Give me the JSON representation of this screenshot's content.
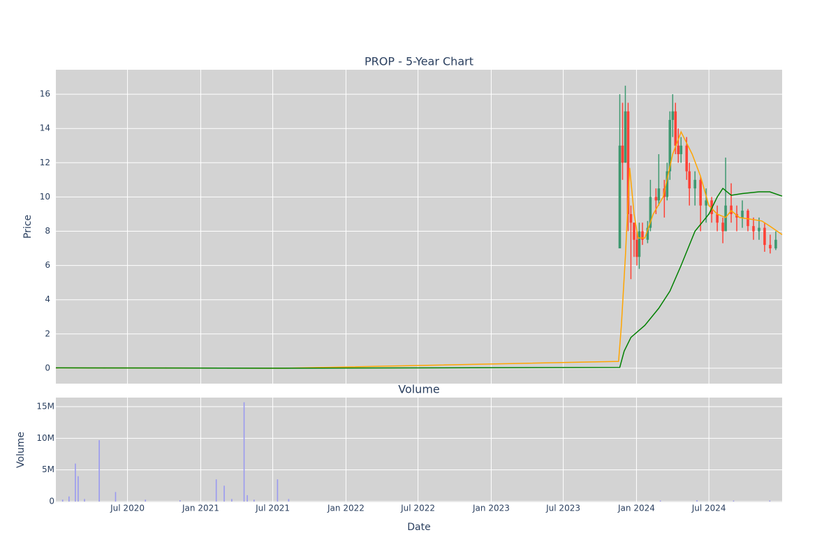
{
  "chart_data": [
    {
      "type": "candlestick",
      "title": "PROP - 5-Year Chart",
      "y_label": "Price",
      "xlim": [
        "2020-01-03",
        "2025-01-01"
      ],
      "ylim": [
        -0.9,
        17.43
      ],
      "yticks": [
        0,
        2,
        4,
        6,
        8,
        10,
        12,
        14,
        16
      ],
      "grid": true,
      "increasing_color": "#3d9970",
      "decreasing_color": "#ff4136",
      "candles": {
        "x": [
          "2020-01-06",
          "2020-05-04",
          "2020-10-05",
          "2021-03-01",
          "2021-07-05",
          "2023-11-20",
          "2023-11-27",
          "2023-12-04",
          "2023-12-11",
          "2023-12-18",
          "2023-12-26",
          "2024-01-02",
          "2024-01-08",
          "2024-01-16",
          "2024-01-29",
          "2024-02-05",
          "2024-02-19",
          "2024-02-26",
          "2024-03-11",
          "2024-03-18",
          "2024-03-25",
          "2024-04-01",
          "2024-04-08",
          "2024-04-15",
          "2024-04-22",
          "2024-05-06",
          "2024-05-13",
          "2024-05-27",
          "2024-06-10",
          "2024-06-24",
          "2024-07-08",
          "2024-07-22",
          "2024-08-05",
          "2024-08-12",
          "2024-08-26",
          "2024-09-09",
          "2024-09-23",
          "2024-10-07",
          "2024-10-21",
          "2024-11-04",
          "2024-11-18",
          "2024-12-02",
          "2024-12-16"
        ],
        "open": [
          0.03,
          0.02,
          0.03,
          0.02,
          0.01,
          7,
          13,
          12,
          15,
          9,
          8.5,
          7.5,
          6.5,
          8,
          7.5,
          8.2,
          10,
          9.8,
          10.5,
          10,
          11.5,
          14.5,
          15,
          13,
          12.5,
          13,
          11.5,
          10.5,
          11,
          9.5,
          9.8,
          9,
          8.5,
          8,
          9.5,
          9,
          8.8,
          9.2,
          8.3,
          8,
          8.2,
          7.2,
          7
        ],
        "high": [
          0.05,
          0.04,
          0.04,
          0.03,
          0.02,
          16,
          15.5,
          16.5,
          15.5,
          9.5,
          8.5,
          8,
          8.5,
          8.5,
          8.6,
          11,
          10.5,
          12.5,
          11,
          12,
          15,
          16,
          15.5,
          14,
          13.5,
          13.5,
          12,
          11.5,
          11.2,
          10.5,
          10,
          9.5,
          8.8,
          12.3,
          10.8,
          9.5,
          9.8,
          9.3,
          8.8,
          8.8,
          8.5,
          7.8,
          8
        ],
        "low": [
          0.01,
          0.0,
          0.01,
          0.0,
          0.0,
          7,
          11,
          12,
          8,
          5.2,
          6.5,
          6,
          5.8,
          7.2,
          7.3,
          8,
          9,
          9.5,
          8.8,
          9.8,
          11,
          13.5,
          12.5,
          12,
          12,
          11,
          9.5,
          9.5,
          8,
          8.5,
          8.5,
          8,
          7.3,
          8,
          8.5,
          8,
          8.2,
          8,
          7.5,
          7.5,
          6.8,
          6.7,
          6.9
        ],
        "close": [
          0.02,
          0.03,
          0.02,
          0.01,
          0.02,
          13,
          12,
          15,
          9,
          8.5,
          7.5,
          6.5,
          8,
          7.5,
          8.2,
          10,
          9.8,
          10.5,
          10,
          11.5,
          14.5,
          15,
          13,
          12.5,
          13,
          11.5,
          10.5,
          11,
          9.5,
          9.8,
          9,
          8.5,
          8,
          9.5,
          9,
          8.8,
          9.2,
          8.3,
          8,
          8.2,
          7.2,
          7,
          7.5
        ]
      },
      "lines": [
        {
          "color": "#ffa500",
          "x": [
            "2020-01-03",
            "2021-08-01",
            "2023-11-17",
            "2023-11-24",
            "2023-12-04",
            "2023-12-15",
            "2023-12-26",
            "2024-01-05",
            "2024-01-22",
            "2024-02-12",
            "2024-03-08",
            "2024-04-01",
            "2024-04-22",
            "2024-05-20",
            "2024-06-10",
            "2024-07-01",
            "2024-07-22",
            "2024-08-12",
            "2024-08-26",
            "2024-09-16",
            "2024-10-14",
            "2024-11-11",
            "2024-12-01",
            "2025-01-01"
          ],
          "values": [
            0.02,
            0.0,
            0.4,
            2.5,
            6.5,
            11.7,
            9,
            7.6,
            7.6,
            9,
            10,
            12.5,
            13.8,
            12.5,
            11.2,
            9.5,
            9,
            8.8,
            9.2,
            8.8,
            8.7,
            8.6,
            8.3,
            7.8
          ]
        },
        {
          "color": "#008000",
          "x": [
            "2020-01-03",
            "2021-08-01",
            "2023-11-20",
            "2023-12-01",
            "2023-12-18",
            "2024-01-22",
            "2024-02-26",
            "2024-03-25",
            "2024-04-22",
            "2024-05-27",
            "2024-07-01",
            "2024-07-22",
            "2024-08-05",
            "2024-08-26",
            "2024-09-23",
            "2024-11-04",
            "2024-12-01",
            "2025-01-01"
          ],
          "values": [
            0.02,
            0.0,
            0.05,
            1.0,
            1.8,
            2.5,
            3.5,
            4.5,
            6.0,
            8.0,
            9.0,
            10.0,
            10.5,
            10.1,
            10.2,
            10.3,
            10.3,
            10.05
          ]
        }
      ]
    },
    {
      "type": "bar",
      "title": "Volume",
      "x_label": "Date",
      "y_label": "Volume",
      "xlim": [
        "2020-01-03",
        "2025-01-01"
      ],
      "ylim": [
        -110000,
        16430000
      ],
      "xticks": [
        {
          "value": "2020-07-01",
          "label": "Jul 2020"
        },
        {
          "value": "2021-01-01",
          "label": "Jan 2021"
        },
        {
          "value": "2021-07-01",
          "label": "Jul 2021"
        },
        {
          "value": "2022-01-01",
          "label": "Jan 2022"
        },
        {
          "value": "2022-07-01",
          "label": "Jul 2022"
        },
        {
          "value": "2023-01-01",
          "label": "Jan 2023"
        },
        {
          "value": "2023-07-01",
          "label": "Jul 2023"
        },
        {
          "value": "2024-01-01",
          "label": "Jan 2024"
        },
        {
          "value": "2024-07-01",
          "label": "Jul 2024"
        }
      ],
      "yticks": [
        0,
        {
          "value": 5000000,
          "label": "5M"
        },
        {
          "value": 10000000,
          "label": "10M"
        },
        {
          "value": 15000000,
          "label": "15M"
        }
      ],
      "grid": true,
      "color": "#9a9af0",
      "x": [
        "2020-01-20",
        "2020-02-05",
        "2020-02-21",
        "2020-02-28",
        "2020-03-15",
        "2020-04-21",
        "2020-06-01",
        "2020-08-15",
        "2020-11-10",
        "2021-02-09",
        "2021-03-01",
        "2021-03-20",
        "2021-04-20",
        "2021-04-28",
        "2021-05-15",
        "2021-07-13",
        "2021-08-10",
        "2024-03-01",
        "2024-06-01",
        "2024-09-01",
        "2024-12-01"
      ],
      "values": [
        300000,
        800000,
        6000000,
        4000000,
        400000,
        9700000,
        1500000,
        300000,
        200000,
        3500000,
        2500000,
        400000,
        15700000,
        1000000,
        300000,
        3500000,
        400000,
        150000,
        200000,
        150000,
        150000
      ]
    }
  ]
}
